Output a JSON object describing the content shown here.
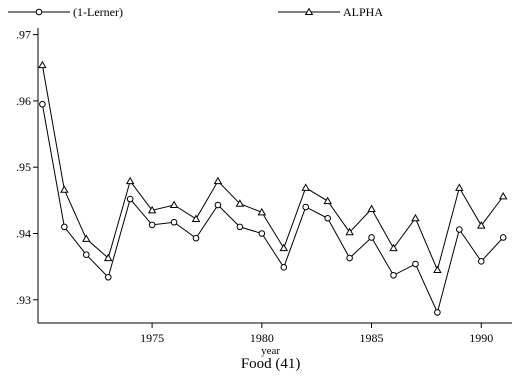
{
  "chart_data": {
    "type": "line",
    "title": "",
    "note": "Food (41)",
    "xlabel": "year",
    "ylabel": "",
    "xlim": [
      1969.8,
      1991.4
    ],
    "ylim": [
      0.9265,
      0.971
    ],
    "x_ticks": [
      1975,
      1980,
      1985,
      1990
    ],
    "x_tick_labels": [
      "1975",
      "1980",
      "1985",
      "1990"
    ],
    "y_ticks": [
      0.93,
      0.94,
      0.95,
      0.96,
      0.97
    ],
    "y_tick_labels": [
      ".93",
      ".94",
      ".95",
      ".96",
      ".97"
    ],
    "grid": false,
    "legend_position": "top",
    "x": [
      1970,
      1971,
      1972,
      1973,
      1974,
      1975,
      1976,
      1977,
      1978,
      1979,
      1980,
      1981,
      1982,
      1983,
      1984,
      1985,
      1986,
      1987,
      1988,
      1989,
      1990,
      1991
    ],
    "series": [
      {
        "name": "(1-Lerner)",
        "marker": "circle",
        "values": [
          0.9595,
          0.941,
          0.9368,
          0.9334,
          0.9452,
          0.9413,
          0.9417,
          0.9393,
          0.9443,
          0.941,
          0.94,
          0.9349,
          0.944,
          0.9423,
          0.9363,
          0.9394,
          0.9337,
          0.9354,
          0.9281,
          0.9406,
          0.9358,
          0.9394
        ]
      },
      {
        "name": "ALPHA",
        "marker": "triangle",
        "values": [
          0.9654,
          0.9466,
          0.9392,
          0.9363,
          0.9479,
          0.9435,
          0.9443,
          0.9422,
          0.9479,
          0.9445,
          0.9432,
          0.9378,
          0.9469,
          0.9449,
          0.9402,
          0.9437,
          0.9378,
          0.9423,
          0.9345,
          0.9469,
          0.9412,
          0.9456
        ]
      }
    ]
  }
}
